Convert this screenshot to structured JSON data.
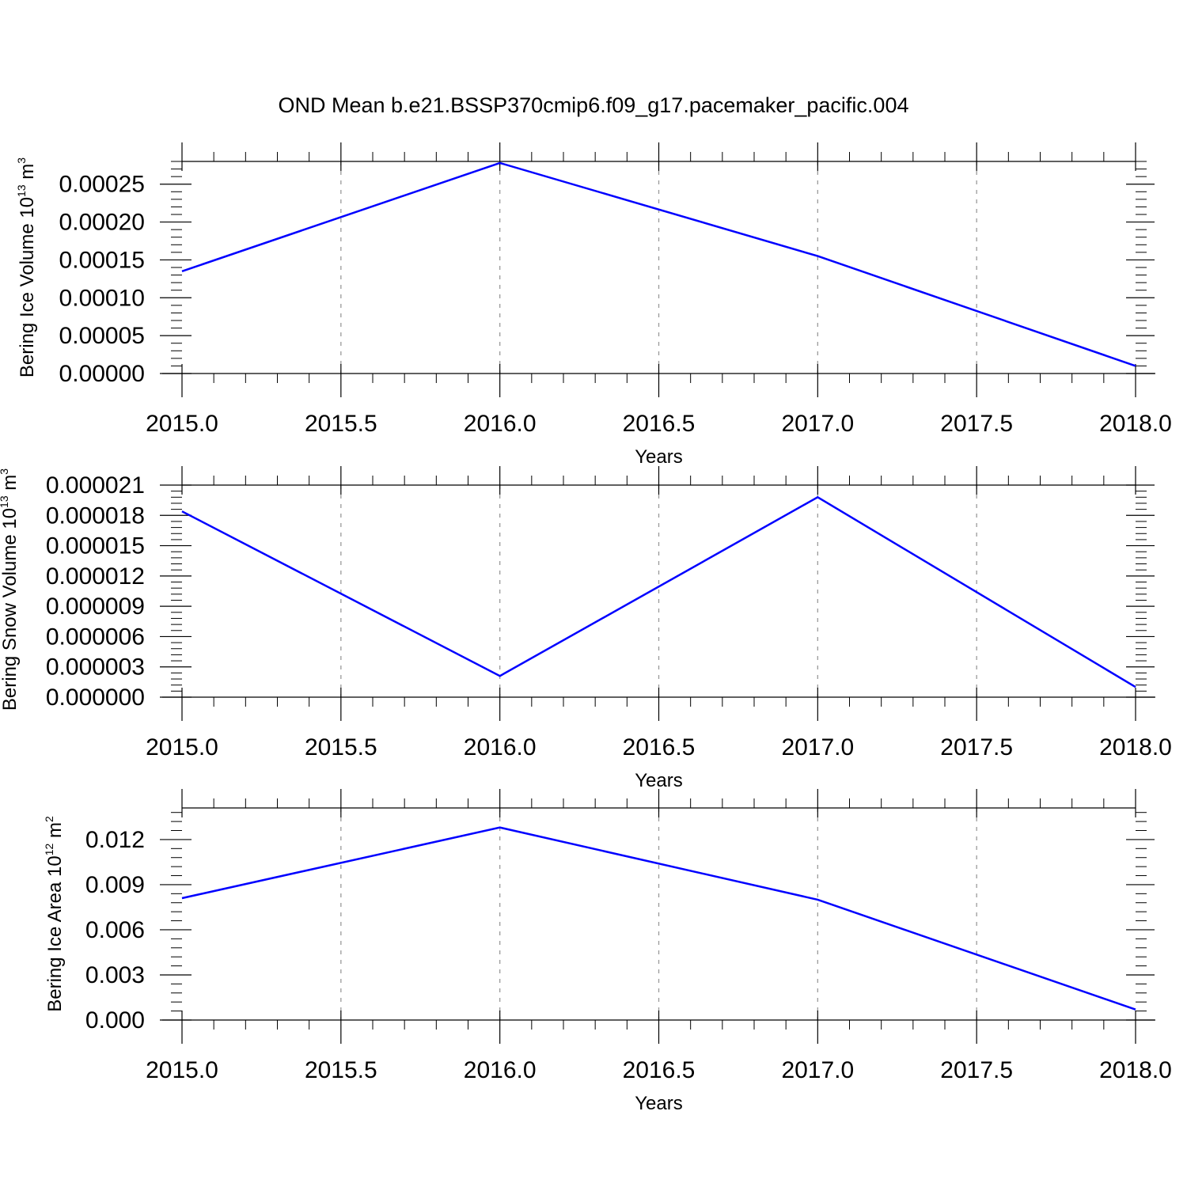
{
  "title": "OND Mean b.e21.BSSP370cmip6.f09_g17.pacemaker_pacific.004",
  "colors": {
    "series": "#0000ff",
    "axis": "#000000",
    "grid": "#9a9a9a"
  },
  "chart_data": [
    {
      "type": "line",
      "xlabel": "Years",
      "ylabel": {
        "prefix": "Bering Ice Volume 10",
        "exponent": "13",
        "unit": " m",
        "unit_exponent": "3"
      },
      "x": [
        2015.0,
        2016.0,
        2017.0,
        2018.0
      ],
      "series": [
        {
          "values": [
            0.000135,
            0.000278,
            0.000155,
            1e-05
          ]
        }
      ],
      "xlim": [
        2015.0,
        2018.0
      ],
      "ylim": [
        0.0,
        0.00028
      ],
      "xticks": [
        "2015.0",
        "2015.5",
        "2016.0",
        "2016.5",
        "2017.0",
        "2017.5",
        "2018.0"
      ],
      "yticks": [
        "0.00000",
        "0.00005",
        "0.00010",
        "0.00015",
        "0.00020",
        "0.00025"
      ],
      "grid": "vertical dashed"
    },
    {
      "type": "line",
      "xlabel": "Years",
      "ylabel": {
        "prefix": "Bering Snow Volume 10",
        "exponent": "13",
        "unit": " m",
        "unit_exponent": "3"
      },
      "x": [
        2015.0,
        2016.0,
        2017.0,
        2018.0
      ],
      "series": [
        {
          "values": [
            1.84e-05,
            2.1e-06,
            1.98e-05,
            1e-06
          ]
        }
      ],
      "xlim": [
        2015.0,
        2018.0
      ],
      "ylim": [
        0.0,
        2.1e-05
      ],
      "xticks": [
        "2015.0",
        "2015.5",
        "2016.0",
        "2016.5",
        "2017.0",
        "2017.5",
        "2018.0"
      ],
      "yticks": [
        "0.000000",
        "0.000003",
        "0.000006",
        "0.000009",
        "0.000012",
        "0.000015",
        "0.000018",
        "0.000021"
      ],
      "grid": "vertical dashed"
    },
    {
      "type": "line",
      "xlabel": "Years",
      "ylabel": {
        "prefix": "Bering Ice Area 10",
        "exponent": "12",
        "unit": " m",
        "unit_exponent": "2"
      },
      "x": [
        2015.0,
        2016.0,
        2017.0,
        2018.0
      ],
      "series": [
        {
          "values": [
            0.0081,
            0.0128,
            0.008,
            0.0007
          ]
        }
      ],
      "xlim": [
        2015.0,
        2018.0
      ],
      "ylim": [
        0.0,
        0.0141
      ],
      "xticks": [
        "2015.0",
        "2015.5",
        "2016.0",
        "2016.5",
        "2017.0",
        "2017.5",
        "2018.0"
      ],
      "yticks": [
        "0.000",
        "0.003",
        "0.006",
        "0.009",
        "0.012"
      ],
      "grid": "vertical dashed"
    }
  ]
}
